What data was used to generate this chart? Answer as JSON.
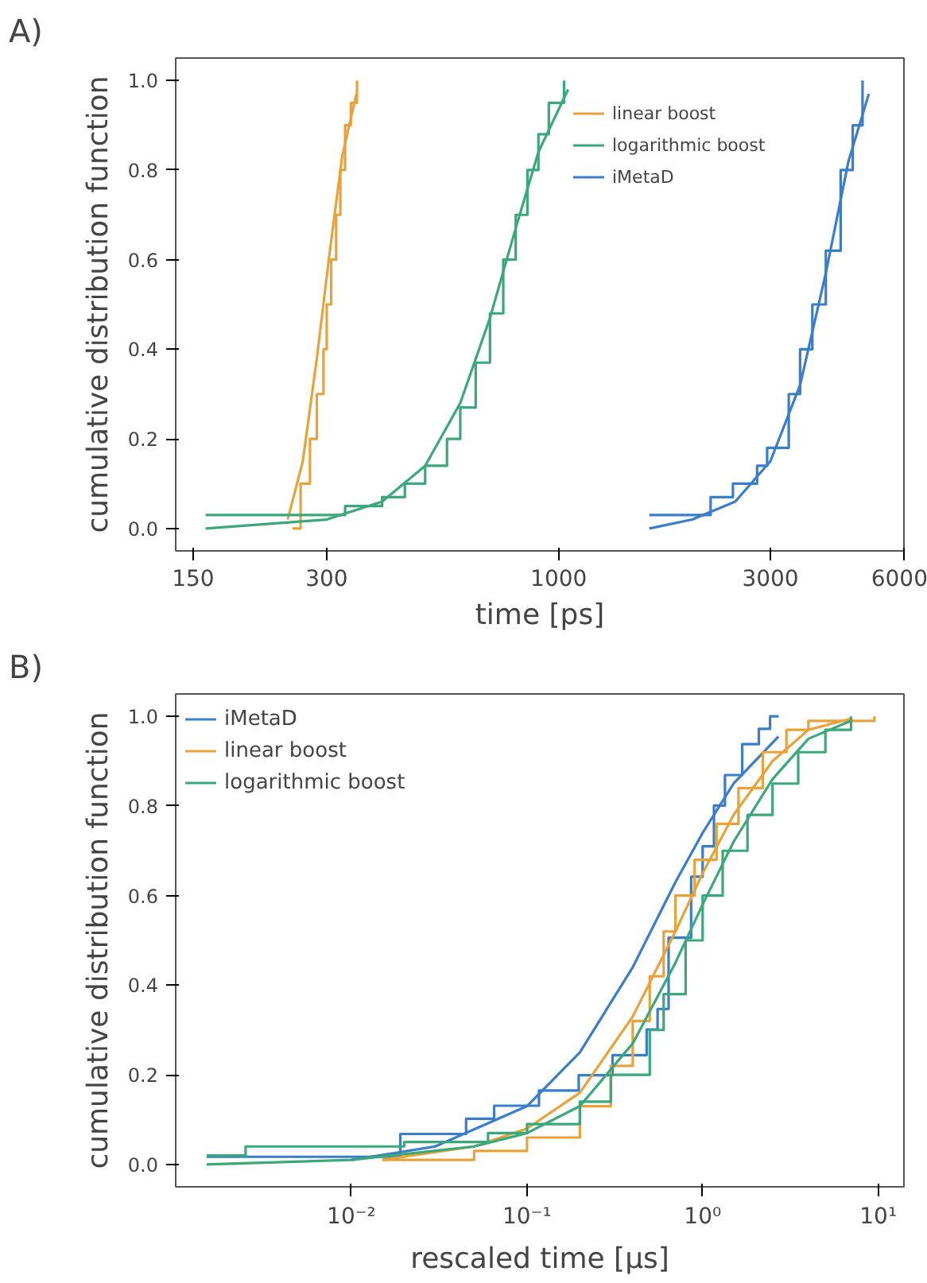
{
  "chart_data": [
    {
      "type": "step",
      "title": "A)",
      "xlabel": "time [ps]",
      "ylabel": "cumulative distribution function",
      "log": "x",
      "xlim": [
        137,
        6000
      ],
      "xticks": [
        150,
        300,
        1000,
        3000,
        6000
      ],
      "ylim": [
        -0.05,
        1.05
      ],
      "yticks": [
        {
          "value": 0,
          "label": "0.0"
        },
        {
          "value": 0.2,
          "label": "0.2"
        },
        {
          "value": 0.4,
          "label": "0.4"
        },
        {
          "value": 0.6,
          "label": "0.6"
        },
        {
          "value": 0.8,
          "label": "0.8"
        },
        {
          "value": 1,
          "label": "1.0"
        }
      ],
      "legend": "top right",
      "series": [
        {
          "name": "linear boost",
          "color": "#e8a23a",
          "x": [
            251,
            262,
            275,
            285,
            295,
            300,
            307,
            315,
            322,
            330,
            340,
            351
          ],
          "values": [
            0,
            0.1,
            0.2,
            0.3,
            0.4,
            0.5,
            0.6,
            0.7,
            0.8,
            0.9,
            0.95,
            1.0
          ]
        },
        {
          "type": "line",
          "color": "#e8a23a",
          "x": [
            245,
            265,
            285,
            305,
            325,
            350
          ],
          "values": [
            0.02,
            0.15,
            0.38,
            0.62,
            0.83,
            0.97
          ]
        },
        {
          "name": "logarithmic boost",
          "color": "#3aa87a",
          "x": [
            160,
            330,
            400,
            450,
            500,
            560,
            600,
            650,
            700,
            750,
            800,
            850,
            900,
            950,
            1028
          ],
          "values": [
            0.03,
            0.05,
            0.07,
            0.1,
            0.14,
            0.2,
            0.27,
            0.37,
            0.48,
            0.6,
            0.7,
            0.8,
            0.88,
            0.95,
            1.0
          ]
        },
        {
          "type": "line",
          "color": "#3aa87a",
          "x": [
            160,
            300,
            400,
            500,
            600,
            700,
            800,
            900,
            1050
          ],
          "values": [
            0.0,
            0.02,
            0.06,
            0.14,
            0.28,
            0.47,
            0.67,
            0.84,
            0.98
          ]
        },
        {
          "name": "iMetaD",
          "color": "#3a7dc9",
          "x": [
            1600,
            2200,
            2470,
            2800,
            2950,
            3300,
            3500,
            3730,
            4000,
            4320,
            4600,
            4840
          ],
          "values": [
            0.03,
            0.07,
            0.1,
            0.14,
            0.18,
            0.3,
            0.4,
            0.5,
            0.62,
            0.8,
            0.9,
            1.0
          ]
        },
        {
          "type": "line",
          "color": "#3a7dc9",
          "x": [
            1600,
            2000,
            2500,
            3000,
            3500,
            4000,
            4500,
            5000
          ],
          "values": [
            0.0,
            0.02,
            0.06,
            0.15,
            0.32,
            0.57,
            0.82,
            0.97
          ]
        }
      ]
    },
    {
      "type": "step",
      "title": "B)",
      "xlabel": "rescaled time [μs]",
      "ylabel": "cumulative distribution function",
      "log": "x",
      "xlim": [
        0.001,
        14
      ],
      "xticks": [
        {
          "value": 0.01,
          "label": "10⁻²"
        },
        {
          "value": 0.1,
          "label": "10⁻¹"
        },
        {
          "value": 1,
          "label": "10⁰"
        },
        {
          "value": 10,
          "label": "10¹"
        }
      ],
      "ylim": [
        -0.05,
        1.05
      ],
      "yticks": [
        {
          "value": 0,
          "label": "0.0"
        },
        {
          "value": 0.2,
          "label": "0.2"
        },
        {
          "value": 0.4,
          "label": "0.4"
        },
        {
          "value": 0.6,
          "label": "0.6"
        },
        {
          "value": 0.8,
          "label": "0.8"
        },
        {
          "value": 1,
          "label": "1.0"
        }
      ],
      "legend": "top left",
      "series": [
        {
          "name": "iMetaD",
          "color": "#3a7dc9",
          "x": [
            0.0015,
            0.019,
            0.045,
            0.065,
            0.117,
            0.197,
            0.307,
            0.48,
            0.554,
            0.64,
            0.86,
            1.0,
            1.16,
            1.34,
            1.68,
            2.09,
            2.42,
            2.71
          ],
          "values": [
            0.017,
            0.068,
            0.102,
            0.131,
            0.165,
            0.199,
            0.244,
            0.301,
            0.347,
            0.506,
            0.642,
            0.71,
            0.801,
            0.869,
            0.938,
            0.972,
            1.0,
            1.0
          ]
        },
        {
          "type": "line",
          "color": "#3a7dc9",
          "x": [
            0.01,
            0.03,
            0.1,
            0.2,
            0.4,
            0.7,
            1.0,
            1.5,
            2.7
          ],
          "values": [
            0.01,
            0.04,
            0.13,
            0.25,
            0.44,
            0.63,
            0.74,
            0.85,
            0.955
          ]
        },
        {
          "name": "linear boost",
          "color": "#e8a23a",
          "x": [
            0.015,
            0.05,
            0.1,
            0.2,
            0.3,
            0.4,
            0.5,
            0.6,
            0.7,
            0.9,
            1.2,
            1.6,
            2.2,
            3,
            4,
            9.5
          ],
          "values": [
            0.01,
            0.03,
            0.06,
            0.13,
            0.22,
            0.32,
            0.42,
            0.52,
            0.6,
            0.68,
            0.76,
            0.84,
            0.92,
            0.97,
            0.99,
            1.0
          ]
        },
        {
          "type": "line",
          "color": "#e8a23a",
          "x": [
            0.015,
            0.05,
            0.1,
            0.2,
            0.4,
            0.7,
            1,
            1.5,
            2.5,
            4,
            7
          ],
          "values": [
            0.01,
            0.04,
            0.08,
            0.16,
            0.33,
            0.52,
            0.65,
            0.78,
            0.9,
            0.97,
            0.995
          ]
        },
        {
          "name": "logarithmic boost",
          "color": "#3aa87a",
          "x": [
            0.0015,
            0.0025,
            0.02,
            0.06,
            0.1,
            0.2,
            0.3,
            0.5,
            0.6,
            0.8,
            1.0,
            1.3,
            1.8,
            2.5,
            3.5,
            5,
            7
          ],
          "values": [
            0.02,
            0.04,
            0.05,
            0.07,
            0.09,
            0.14,
            0.2,
            0.3,
            0.38,
            0.5,
            0.6,
            0.7,
            0.78,
            0.85,
            0.92,
            0.97,
            1.0
          ]
        },
        {
          "type": "line",
          "color": "#3aa87a",
          "x": [
            0.0015,
            0.01,
            0.05,
            0.1,
            0.2,
            0.4,
            0.7,
            1,
            1.5,
            2.5,
            4,
            7
          ],
          "values": [
            0.0,
            0.01,
            0.04,
            0.07,
            0.13,
            0.27,
            0.45,
            0.58,
            0.72,
            0.86,
            0.95,
            0.99
          ]
        }
      ]
    }
  ]
}
